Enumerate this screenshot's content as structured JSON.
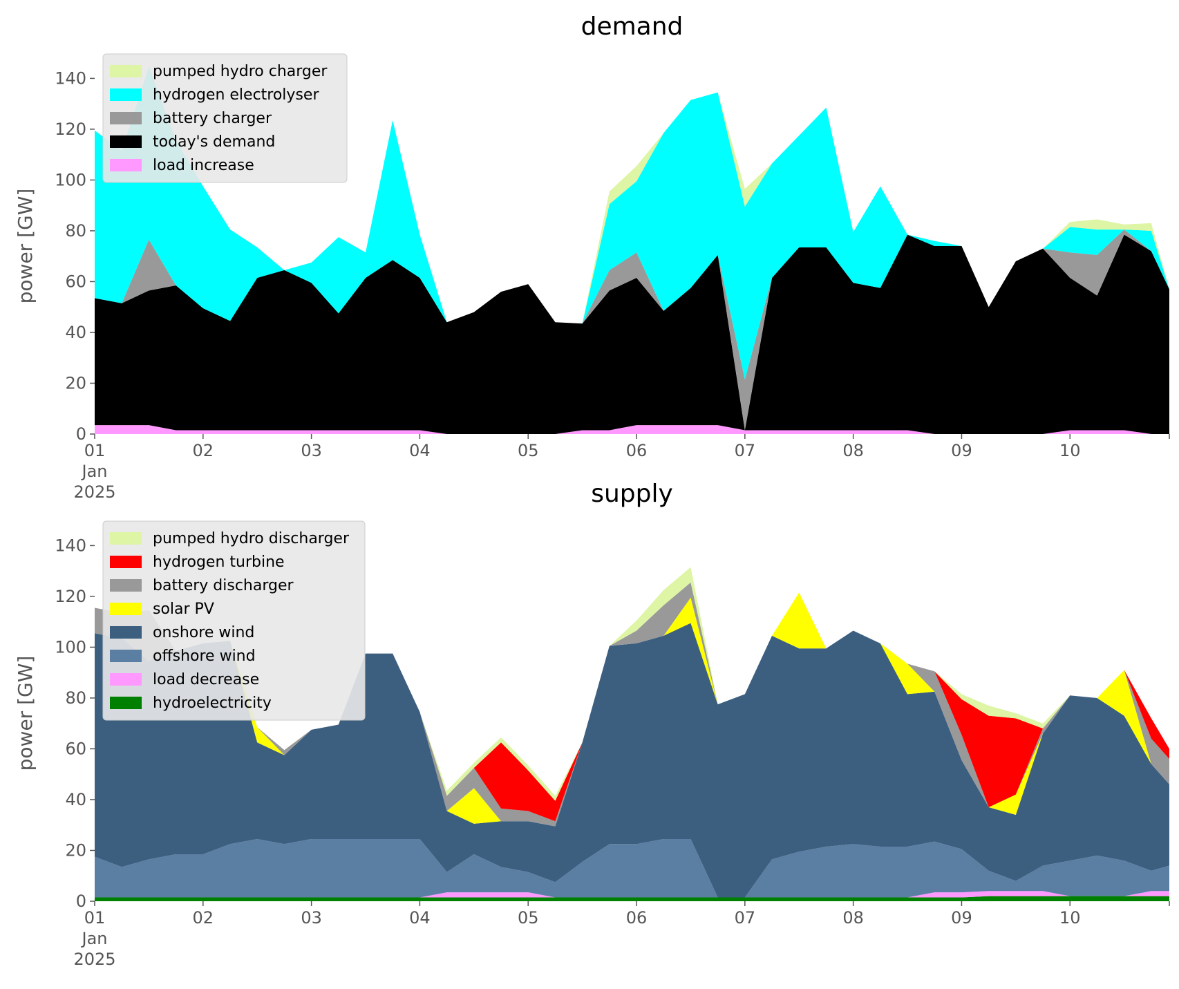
{
  "chart_data": [
    {
      "type": "area",
      "title": "demand",
      "xlabel": "",
      "ylabel": "power [GW]",
      "ylim": [
        0,
        148
      ],
      "xlim": [
        "2025-01-01 00:00",
        "2025-01-10 22:00"
      ],
      "y_ticks": [
        "0",
        "20",
        "40",
        "60",
        "80",
        "100",
        "120",
        "140"
      ],
      "x_ticks": [
        "01\nJan\n2025",
        "02",
        "03",
        "04",
        "05",
        "06",
        "07",
        "08",
        "09",
        "10"
      ],
      "grid": false,
      "legend_position": "top-left",
      "stack_order": [
        "load increase",
        "today's demand",
        "battery charger",
        "hydrogen electrolyser",
        "pumped hydro charger"
      ],
      "legend": [
        "pumped hydro charger",
        "hydrogen electrolyser",
        "battery charger",
        "today's demand",
        "load increase"
      ],
      "x": [
        "01 00:00",
        "01 06:00",
        "01 12:00",
        "01 18:00",
        "02 00:00",
        "02 06:00",
        "02 12:00",
        "02 18:00",
        "03 00:00",
        "03 06:00",
        "03 12:00",
        "03 18:00",
        "04 00:00",
        "04 06:00",
        "04 12:00",
        "04 18:00",
        "05 00:00",
        "05 06:00",
        "05 12:00",
        "05 18:00",
        "06 00:00",
        "06 06:00",
        "06 12:00",
        "06 18:00",
        "07 00:00",
        "07 06:00",
        "07 12:00",
        "07 18:00",
        "08 00:00",
        "08 06:00",
        "08 12:00",
        "08 18:00",
        "09 00:00",
        "09 06:00",
        "09 12:00",
        "09 18:00",
        "10 00:00",
        "10 06:00",
        "10 12:00",
        "10 18:00",
        "10 22:00"
      ],
      "series": [
        {
          "name": "load increase",
          "color": "#ff99ff",
          "values": [
            3.5,
            3.5,
            3.5,
            1.5,
            1.5,
            1.5,
            1.5,
            1.5,
            1.5,
            1.5,
            1.5,
            1.5,
            1.5,
            0,
            0,
            0,
            0,
            0,
            1.5,
            1.5,
            3.5,
            3.5,
            3.5,
            3.5,
            1.5,
            1.5,
            1.5,
            1.5,
            1.5,
            1.5,
            1.5,
            0,
            0,
            0,
            0,
            0,
            1.5,
            1.5,
            1.5,
            0,
            0
          ]
        },
        {
          "name": "today's demand",
          "color": "#000000",
          "values": [
            50,
            48,
            53,
            57,
            48,
            43,
            60,
            63,
            58,
            46,
            60,
            67,
            60,
            44,
            48,
            56,
            59,
            44,
            42,
            55,
            58,
            45,
            54,
            67,
            0,
            60,
            72,
            72,
            58,
            56,
            77,
            74,
            74,
            50,
            68,
            73,
            60,
            53,
            77,
            72,
            57
          ]
        },
        {
          "name": "battery charger",
          "color": "#999999",
          "values": [
            0,
            0,
            20,
            0,
            0,
            0,
            0,
            0,
            0,
            0,
            0,
            0,
            0,
            0,
            0,
            0,
            0,
            0,
            0,
            8,
            10,
            0,
            0,
            0,
            20,
            0,
            0,
            0,
            0,
            0,
            0,
            0,
            0,
            0,
            0,
            0,
            10,
            16,
            2,
            0,
            0
          ]
        },
        {
          "name": "hydrogen electrolyser",
          "color": "#00ffff",
          "values": [
            66,
            60,
            68,
            57,
            48,
            36,
            12,
            0,
            8,
            30,
            10,
            55,
            17,
            0,
            0,
            0,
            0,
            0,
            0,
            26,
            28,
            70,
            74,
            64,
            68,
            45,
            44,
            55,
            20,
            40,
            0,
            2,
            0,
            0,
            0,
            0,
            10,
            10,
            0,
            8,
            0
          ]
        },
        {
          "name": "pumped hydro charger",
          "color": "#ddf5a4",
          "values": [
            0,
            0,
            0,
            0,
            0,
            0,
            0,
            0,
            0,
            0,
            0,
            0,
            0,
            0,
            0,
            0,
            0,
            0,
            0,
            5,
            6,
            0,
            0,
            0,
            7,
            0,
            0,
            0,
            0,
            0,
            0,
            0,
            0,
            0,
            0,
            0,
            2,
            4,
            2,
            3,
            0
          ]
        }
      ]
    },
    {
      "type": "area",
      "title": "supply",
      "xlabel": "",
      "ylabel": "power [GW]",
      "ylim": [
        0,
        148
      ],
      "xlim": [
        "2025-01-01 00:00",
        "2025-01-10 22:00"
      ],
      "y_ticks": [
        "0",
        "20",
        "40",
        "60",
        "80",
        "100",
        "120",
        "140"
      ],
      "x_ticks": [
        "01\nJan\n2025",
        "02",
        "03",
        "04",
        "05",
        "06",
        "07",
        "08",
        "09",
        "10"
      ],
      "grid": false,
      "legend_position": "top-left",
      "stack_order": [
        "hydroelectricity",
        "load decrease",
        "offshore wind",
        "onshore wind",
        "solar PV",
        "battery discharger",
        "hydrogen turbine",
        "pumped hydro discharger"
      ],
      "legend": [
        "pumped hydro discharger",
        "hydrogen turbine",
        "battery discharger",
        "solar PV",
        "onshore wind",
        "offshore wind",
        "load decrease",
        "hydroelectricity"
      ],
      "x": [
        "01 00:00",
        "01 06:00",
        "01 12:00",
        "01 18:00",
        "02 00:00",
        "02 06:00",
        "02 12:00",
        "02 18:00",
        "03 00:00",
        "03 06:00",
        "03 12:00",
        "03 18:00",
        "04 00:00",
        "04 06:00",
        "04 12:00",
        "04 18:00",
        "05 00:00",
        "05 06:00",
        "05 12:00",
        "05 18:00",
        "06 00:00",
        "06 06:00",
        "06 12:00",
        "06 18:00",
        "07 00:00",
        "07 06:00",
        "07 12:00",
        "07 18:00",
        "08 00:00",
        "08 06:00",
        "08 12:00",
        "08 18:00",
        "09 00:00",
        "09 06:00",
        "09 12:00",
        "09 18:00",
        "10 00:00",
        "10 06:00",
        "10 12:00",
        "10 18:00",
        "10 22:00"
      ],
      "series": [
        {
          "name": "hydroelectricity",
          "color": "#008000",
          "values": [
            1.5,
            1.5,
            1.5,
            1.5,
            1.5,
            1.5,
            1.5,
            1.5,
            1.5,
            1.5,
            1.5,
            1.5,
            1.5,
            1.5,
            1.5,
            1.5,
            1.5,
            1.5,
            1.5,
            1.5,
            1.5,
            1.5,
            1.5,
            1.5,
            1.5,
            1.5,
            1.5,
            1.5,
            1.5,
            1.5,
            1.5,
            1.5,
            1.5,
            2,
            2,
            2,
            2,
            2,
            2,
            2,
            2
          ]
        },
        {
          "name": "load decrease",
          "color": "#ff99ff",
          "values": [
            0,
            0,
            0,
            0,
            0,
            0,
            0,
            0,
            0,
            0,
            0,
            0,
            0,
            2,
            2,
            2,
            2,
            0,
            0,
            0,
            0,
            0,
            0,
            0,
            0,
            0,
            0,
            0,
            0,
            0,
            0,
            2,
            2,
            2,
            2,
            2,
            0,
            0,
            0,
            2,
            2
          ]
        },
        {
          "name": "offshore wind",
          "color": "#5b7fa3",
          "values": [
            16,
            12,
            15,
            17,
            17,
            21,
            23,
            21,
            23,
            23,
            23,
            23,
            23,
            8,
            15,
            10,
            8,
            6,
            14,
            21,
            21,
            23,
            23,
            0,
            0,
            15,
            18,
            20,
            21,
            20,
            20,
            20,
            17,
            8,
            4,
            10,
            14,
            16,
            14,
            8,
            10
          ]
        },
        {
          "name": "onshore wind",
          "color": "#3c5f80",
          "values": [
            88,
            90,
            78,
            80,
            83,
            80,
            38,
            35,
            43,
            45,
            73,
            73,
            50,
            24,
            12,
            18,
            20,
            22,
            47,
            78,
            79,
            80,
            85,
            76,
            80,
            88,
            80,
            78,
            84,
            80,
            60,
            59,
            35,
            25,
            26,
            52,
            65,
            62,
            57,
            42,
            32
          ]
        },
        {
          "name": "solar PV",
          "color": "#ffff00",
          "values": [
            0,
            0,
            0,
            0,
            0,
            0,
            6,
            0,
            0,
            0,
            0,
            0,
            0,
            0,
            14,
            0,
            0,
            0,
            0,
            0,
            0,
            0,
            10,
            0,
            0,
            0,
            22,
            0,
            0,
            0,
            12,
            0,
            0,
            0,
            8,
            0,
            0,
            0,
            18,
            0,
            0
          ]
        },
        {
          "name": "battery discharger",
          "color": "#999999",
          "values": [
            10,
            10,
            20,
            0,
            0,
            0,
            0,
            2,
            0,
            0,
            0,
            0,
            0,
            6,
            8,
            5,
            4,
            2,
            0,
            0,
            5,
            12,
            6,
            0,
            0,
            0,
            0,
            0,
            0,
            0,
            0,
            8,
            10,
            0,
            0,
            2,
            0,
            0,
            0,
            10,
            10
          ]
        },
        {
          "name": "hydrogen turbine",
          "color": "#ff0000",
          "values": [
            0,
            0,
            0,
            0,
            0,
            0,
            0,
            0,
            0,
            0,
            0,
            0,
            0,
            0,
            0,
            26,
            16,
            8,
            0,
            0,
            0,
            0,
            0,
            0,
            0,
            0,
            0,
            0,
            0,
            0,
            0,
            0,
            14,
            36,
            30,
            0,
            0,
            0,
            0,
            8,
            4
          ]
        },
        {
          "name": "pumped hydro discharger",
          "color": "#ddf5a4",
          "values": [
            0,
            0,
            0,
            0,
            0,
            0,
            0,
            0,
            0,
            0,
            0,
            0,
            0,
            2,
            2,
            2,
            2,
            2,
            0,
            0,
            4,
            6,
            6,
            0,
            0,
            0,
            0,
            0,
            0,
            0,
            0,
            0,
            2,
            4,
            2,
            2,
            0,
            0,
            0,
            0,
            0
          ]
        }
      ]
    }
  ]
}
